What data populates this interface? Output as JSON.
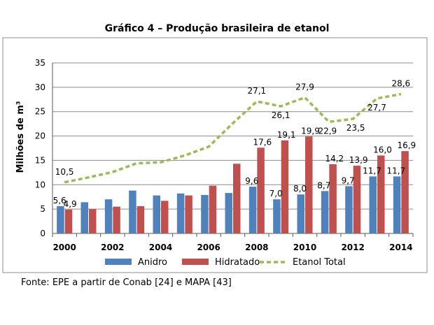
{
  "title": "Gráfico 4 – Produção brasileira de etanol",
  "source": "Fonte: EPE a partir de Conab [24] e MAPA [43]",
  "colors": {
    "anidro": "#4F81BD",
    "hidratado": "#C0504D",
    "total": "#9BBB59",
    "grid": "#8c8c8c",
    "border": "#8c8c8c"
  },
  "chart_data": {
    "type": "bar",
    "title": "Gráfico 4 – Produção brasileira de etanol",
    "xlabel": "",
    "ylabel": "Milhões de m³",
    "ylim": [
      0,
      35
    ],
    "yticks": [
      0,
      5,
      10,
      15,
      20,
      25,
      30,
      35
    ],
    "categories": [
      "2000",
      "2001",
      "2002",
      "2003",
      "2004",
      "2005",
      "2006",
      "2007",
      "2008",
      "2009",
      "2010",
      "2011",
      "2012",
      "2013",
      "2014"
    ],
    "xtick_labels": [
      "2000",
      "",
      "2002",
      "",
      "2004",
      "",
      "2006",
      "",
      "2008",
      "",
      "2010",
      "",
      "2012",
      "",
      "2014"
    ],
    "grid": true,
    "legend_position": "bottom",
    "series": [
      {
        "name": "Anidro",
        "type": "bar",
        "values": [
          5.6,
          6.4,
          7.0,
          8.8,
          7.8,
          8.2,
          7.9,
          8.3,
          9.6,
          7.0,
          8.0,
          8.7,
          9.7,
          11.7,
          11.7
        ],
        "data_labels": [
          "5,6",
          "",
          "",
          "",
          "",
          "",
          "",
          "",
          "9,6",
          "7,0",
          "8,0",
          "8,7",
          "9,7",
          "11,7",
          "11,7"
        ]
      },
      {
        "name": "Hidratado",
        "type": "bar",
        "values": [
          4.9,
          5.0,
          5.5,
          5.6,
          6.7,
          7.8,
          9.8,
          14.3,
          17.6,
          19.1,
          19.9,
          14.2,
          13.9,
          16.0,
          16.9
        ],
        "data_labels": [
          "4,9",
          "",
          "",
          "",
          "",
          "",
          "",
          "",
          "17,6",
          "19,1",
          "19,9",
          "14,2",
          "13,9",
          "16,0",
          "16,9"
        ]
      },
      {
        "name": "Etanol Total",
        "type": "line",
        "style": "dashed",
        "values": [
          10.5,
          11.5,
          12.6,
          14.4,
          14.6,
          16.0,
          17.8,
          22.6,
          27.1,
          26.1,
          27.9,
          22.9,
          23.5,
          27.7,
          28.6
        ],
        "data_labels": [
          "10,5",
          "",
          "",
          "",
          "",
          "",
          "",
          "",
          "27,1",
          "26,1",
          "27,9",
          "22,9",
          "23,5",
          "27,7",
          "28,6"
        ]
      }
    ]
  }
}
